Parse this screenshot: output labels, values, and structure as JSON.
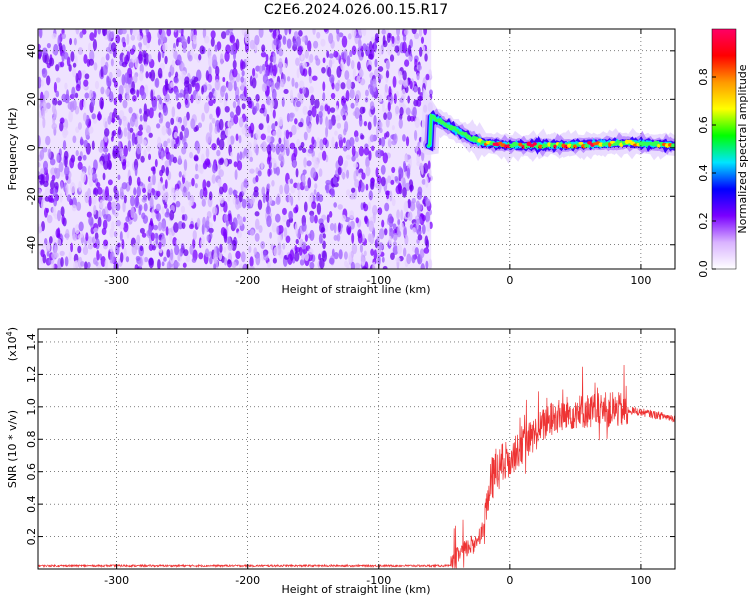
{
  "title": "C2E6.2024.026.00.15.R17",
  "chart_data": [
    {
      "type": "heatmap",
      "xlabel": "Height of straight line (km)",
      "ylabel": "Frequency (Hz)",
      "xlim": [
        -360,
        126
      ],
      "ylim": [
        -50,
        49
      ],
      "x_ticks": [
        "-300",
        "-200",
        "-100",
        "0",
        "100"
      ],
      "x_tick_values": [
        -300,
        -200,
        -100,
        0,
        100
      ],
      "y_ticks": [
        "40",
        "20",
        "0",
        "-20",
        "-40"
      ],
      "y_tick_values": [
        40,
        20,
        0,
        -20,
        -40
      ],
      "grid": true,
      "noise_region_x": [
        -360,
        -60
      ],
      "noise_color": "#7a00ff",
      "signal_band_center": [
        {
          "x": -60,
          "y": 13
        },
        {
          "x": -50,
          "y": 10
        },
        {
          "x": -40,
          "y": 7
        },
        {
          "x": -30,
          "y": 4
        },
        {
          "x": -20,
          "y": 2
        },
        {
          "x": 0,
          "y": 1
        },
        {
          "x": 40,
          "y": 1
        },
        {
          "x": 90,
          "y": 2
        },
        {
          "x": 126,
          "y": 1
        }
      ],
      "colorbar": {
        "label": "Normalized spectral amplitude",
        "ticks": [
          "0.0",
          "0.2",
          "0.4",
          "0.6",
          "0.8"
        ],
        "tick_values": [
          0.0,
          0.2,
          0.4,
          0.6,
          0.8
        ],
        "range": [
          0,
          1
        ],
        "colors": [
          "#ffffff",
          "#d9b3ff",
          "#7a00ff",
          "#0000ff",
          "#00e5ff",
          "#00ff00",
          "#ffff00",
          "#ff9900",
          "#ff0000",
          "#ff0066"
        ]
      }
    },
    {
      "type": "line",
      "xlabel": "Height of straight line (km)",
      "ylabel": "SNR (10 * v/v)",
      "exponent_label": "(x10",
      "exponent_power": "4",
      "exponent_close": ")",
      "xlim": [
        -360,
        126
      ],
      "ylim": [
        0,
        1.48
      ],
      "x_ticks": [
        "-300",
        "-200",
        "-100",
        "0",
        "100"
      ],
      "x_tick_values": [
        -300,
        -200,
        -100,
        0,
        100
      ],
      "y_ticks": [
        "0.2",
        "0.4",
        "0.6",
        "0.8",
        "1.0",
        "1.2",
        "1.4"
      ],
      "y_tick_values": [
        0.2,
        0.4,
        0.6,
        0.8,
        1.0,
        1.2,
        1.4
      ],
      "grid": true,
      "series_color": "#ee3333",
      "baseline": 0.02,
      "trend": [
        {
          "x": -360,
          "y": 0.02
        },
        {
          "x": -45,
          "y": 0.02
        },
        {
          "x": -38,
          "y": 0.1
        },
        {
          "x": -28,
          "y": 0.15
        },
        {
          "x": -20,
          "y": 0.25
        },
        {
          "x": -14,
          "y": 0.55
        },
        {
          "x": -8,
          "y": 0.62
        },
        {
          "x": 0,
          "y": 0.68
        },
        {
          "x": 15,
          "y": 0.8
        },
        {
          "x": 30,
          "y": 0.92
        },
        {
          "x": 50,
          "y": 0.97
        },
        {
          "x": 70,
          "y": 0.98
        },
        {
          "x": 90,
          "y": 0.98
        },
        {
          "x": 105,
          "y": 0.96
        },
        {
          "x": 126,
          "y": 0.93
        }
      ]
    }
  ]
}
